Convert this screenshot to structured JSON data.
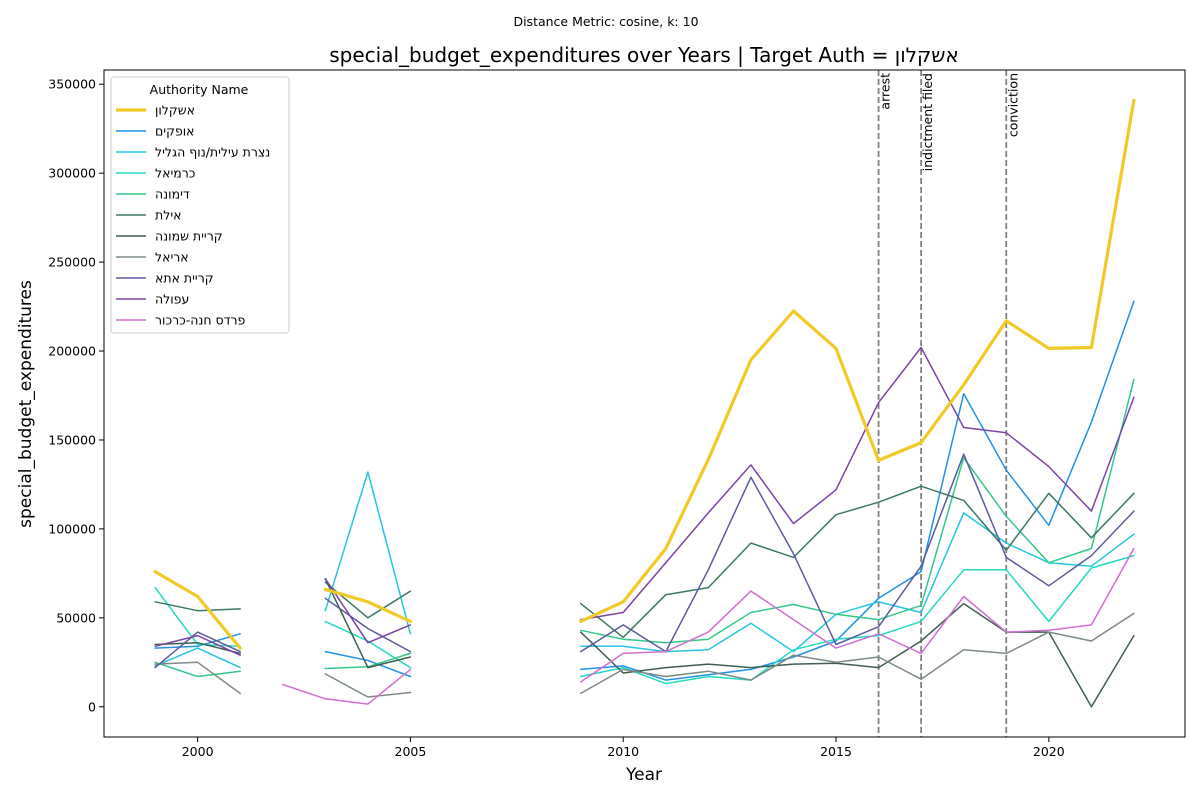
{
  "chart_data": {
    "type": "line",
    "suptitle": "Distance Metric: cosine, k: 10",
    "title": "special_budget_expenditures over Years | Target Auth = אשקלון",
    "xlabel": "Year",
    "ylabel": "special_budget_expenditures",
    "xlim": [
      1997.8,
      2023.2
    ],
    "ylim": [
      -17000,
      358000
    ],
    "xticks": [
      2000,
      2005,
      2010,
      2015,
      2020
    ],
    "yticks": [
      0,
      50000,
      100000,
      150000,
      200000,
      250000,
      300000,
      350000
    ],
    "grid": false,
    "legend": {
      "title": "Authority Name",
      "placement": "upper left"
    },
    "annotations": [
      {
        "x": 2016,
        "label": "arrest"
      },
      {
        "x": 2017,
        "label": "indictment filed"
      },
      {
        "x": 2019,
        "label": "conviction"
      }
    ],
    "annotation_color": "#808080",
    "series": [
      {
        "name": "אשקלון",
        "color": "#F2CA27",
        "width": 3.2,
        "values": [
          [
            1999,
            76000
          ],
          [
            2000,
            62000
          ],
          [
            2001,
            33000
          ],
          null,
          [
            2003,
            66000
          ],
          [
            2004,
            59000
          ],
          [
            2005,
            48000
          ],
          null,
          [
            2009,
            48000
          ],
          [
            2010,
            59000
          ],
          [
            2011,
            89000
          ],
          [
            2012,
            139000
          ],
          [
            2013,
            195000
          ],
          [
            2014,
            222500
          ],
          [
            2015,
            201500
          ],
          [
            2016,
            138500
          ],
          [
            2017,
            148500
          ],
          [
            2018,
            181000
          ],
          [
            2019,
            217000
          ],
          [
            2020,
            201500
          ],
          [
            2021,
            202000
          ],
          [
            2022,
            341000
          ]
        ]
      },
      {
        "name": "אופקים",
        "color": "#2192E6",
        "width": 1.5,
        "values": [
          [
            1999,
            33000
          ],
          [
            2000,
            34000
          ],
          [
            2001,
            41000
          ],
          null,
          [
            2003,
            31000
          ],
          [
            2004,
            26000
          ],
          [
            2005,
            17000
          ],
          null,
          [
            2009,
            21000
          ],
          [
            2010,
            23000
          ],
          [
            2011,
            15000
          ],
          [
            2012,
            18000
          ],
          [
            2013,
            21000
          ],
          [
            2014,
            28000
          ],
          [
            2015,
            37000
          ],
          [
            2016,
            61000
          ],
          [
            2017,
            76000
          ],
          [
            2018,
            176000
          ],
          [
            2019,
            133000
          ],
          [
            2020,
            102000
          ],
          [
            2021,
            160000
          ],
          [
            2022,
            228000
          ]
        ]
      },
      {
        "name": "נצרת עילית/נוף הגליל",
        "color": "#25C6E0",
        "width": 1.5,
        "values": [
          [
            1999,
            23000
          ],
          [
            2000,
            33000
          ],
          [
            2001,
            22000
          ],
          null,
          [
            2003,
            54000
          ],
          [
            2004,
            132000
          ],
          [
            2005,
            41000
          ],
          null,
          [
            2009,
            34000
          ],
          [
            2010,
            34000
          ],
          [
            2011,
            31000
          ],
          [
            2012,
            32000
          ],
          [
            2013,
            47000
          ],
          [
            2014,
            31000
          ],
          [
            2015,
            52000
          ],
          [
            2016,
            59000
          ],
          [
            2017,
            53000
          ],
          [
            2018,
            109000
          ],
          [
            2019,
            92000
          ],
          [
            2020,
            81000
          ],
          [
            2021,
            79000
          ],
          [
            2022,
            97000
          ]
        ]
      },
      {
        "name": "כרמיאל",
        "color": "#22DBC1",
        "width": 1.5,
        "values": [
          [
            1999,
            67000
          ],
          [
            2000,
            35000
          ],
          [
            2001,
            34000
          ],
          null,
          [
            2003,
            48000
          ],
          [
            2004,
            37000
          ],
          [
            2005,
            22000
          ],
          null,
          [
            2009,
            17000
          ],
          [
            2010,
            22000
          ],
          [
            2011,
            13000
          ],
          [
            2012,
            17000
          ],
          [
            2013,
            15000
          ],
          [
            2014,
            32000
          ],
          [
            2015,
            38000
          ],
          [
            2016,
            40000
          ],
          [
            2017,
            48000
          ],
          [
            2018,
            77000
          ],
          [
            2019,
            77000
          ],
          [
            2020,
            48000
          ],
          [
            2021,
            78000
          ],
          [
            2022,
            85000
          ]
        ]
      },
      {
        "name": "דימונה",
        "color": "#33C98A",
        "width": 1.5,
        "values": [
          [
            1999,
            25000
          ],
          [
            2000,
            17000
          ],
          [
            2001,
            20000
          ],
          null,
          [
            2003,
            21500
          ],
          [
            2004,
            22500
          ],
          [
            2005,
            30000
          ],
          null,
          [
            2009,
            43000
          ],
          [
            2010,
            38000
          ],
          [
            2011,
            36000
          ],
          [
            2012,
            38000
          ],
          [
            2013,
            53000
          ],
          [
            2014,
            57500
          ],
          [
            2015,
            52000
          ],
          [
            2016,
            49000
          ],
          [
            2017,
            57000
          ],
          [
            2018,
            140000
          ],
          [
            2019,
            107000
          ],
          [
            2020,
            81000
          ],
          [
            2021,
            89000
          ],
          [
            2022,
            184000
          ]
        ]
      },
      {
        "name": "אילת",
        "color": "#3A7A63",
        "width": 1.5,
        "values": [
          [
            1999,
            59000
          ],
          [
            2000,
            54000
          ],
          [
            2001,
            55000
          ],
          null,
          [
            2003,
            70000
          ],
          [
            2004,
            50000
          ],
          [
            2005,
            65000
          ],
          null,
          [
            2009,
            58000
          ],
          [
            2010,
            39000
          ],
          [
            2011,
            63000
          ],
          [
            2012,
            67000
          ],
          [
            2013,
            92000
          ],
          [
            2014,
            84000
          ],
          [
            2015,
            108000
          ],
          [
            2016,
            115000
          ],
          [
            2017,
            124000
          ],
          [
            2018,
            116000
          ],
          [
            2019,
            88000
          ],
          [
            2020,
            120000
          ],
          [
            2021,
            95000
          ],
          [
            2022,
            120000
          ]
        ]
      },
      {
        "name": "קריית שמונה",
        "color": "#3F5E52",
        "width": 1.5,
        "values": [
          [
            1999,
            35000
          ],
          [
            2000,
            36000
          ],
          [
            2001,
            30000
          ],
          null,
          [
            2003,
            72000
          ],
          [
            2004,
            22000
          ],
          [
            2005,
            28000
          ],
          null,
          [
            2009,
            42000
          ],
          [
            2010,
            19000
          ],
          [
            2011,
            22000
          ],
          [
            2012,
            24000
          ],
          [
            2013,
            22000
          ],
          [
            2014,
            24000
          ],
          [
            2015,
            24500
          ],
          [
            2016,
            22000
          ],
          [
            2017,
            37000
          ],
          [
            2018,
            58000
          ],
          [
            2019,
            42000
          ],
          [
            2020,
            42000
          ],
          [
            2021,
            0
          ],
          [
            2022,
            40000
          ]
        ]
      },
      {
        "name": "אריאל",
        "color": "#7D8A85",
        "width": 1.5,
        "values": [
          [
            1999,
            24000
          ],
          [
            2000,
            25000
          ],
          [
            2001,
            7500
          ],
          null,
          [
            2003,
            18500
          ],
          [
            2004,
            5500
          ],
          [
            2005,
            8000
          ],
          null,
          [
            2009,
            7500
          ],
          [
            2010,
            21000
          ],
          [
            2011,
            17000
          ],
          [
            2012,
            20000
          ],
          [
            2013,
            15000
          ],
          [
            2014,
            29000
          ],
          [
            2015,
            25000
          ],
          [
            2016,
            28000
          ],
          [
            2017,
            15500
          ],
          [
            2018,
            32000
          ],
          [
            2019,
            30000
          ],
          [
            2020,
            42000
          ],
          [
            2021,
            37000
          ],
          [
            2022,
            52500
          ]
        ]
      },
      {
        "name": "קריית אתא",
        "color": "#5B5B9E",
        "width": 1.5,
        "values": [
          [
            1999,
            22000
          ],
          [
            2000,
            42000
          ],
          [
            2001,
            31000
          ],
          null,
          [
            2003,
            61000
          ],
          [
            2004,
            44000
          ],
          [
            2005,
            31000
          ],
          null,
          [
            2009,
            31000
          ],
          [
            2010,
            46000
          ],
          [
            2011,
            31000
          ],
          [
            2012,
            77000
          ],
          [
            2013,
            129000
          ],
          [
            2014,
            86000
          ],
          [
            2015,
            35000
          ],
          [
            2016,
            45000
          ],
          [
            2017,
            79000
          ],
          [
            2018,
            142000
          ],
          [
            2019,
            84000
          ],
          [
            2020,
            68000
          ],
          [
            2021,
            85000
          ],
          [
            2022,
            110000
          ]
        ]
      },
      {
        "name": "עפולה",
        "color": "#7D43A8",
        "width": 1.5,
        "values": [
          [
            1999,
            34000
          ],
          [
            2000,
            40000
          ],
          [
            2001,
            29000
          ],
          null,
          [
            2003,
            72000
          ],
          [
            2004,
            36000
          ],
          [
            2005,
            46000
          ],
          null,
          [
            2009,
            49000
          ],
          [
            2010,
            53000
          ],
          [
            2011,
            81000
          ],
          [
            2012,
            109000
          ],
          [
            2013,
            136000
          ],
          [
            2014,
            103000
          ],
          [
            2015,
            122000
          ],
          [
            2016,
            171000
          ],
          [
            2017,
            202000
          ],
          [
            2018,
            157000
          ],
          [
            2019,
            154000
          ],
          [
            2020,
            135000
          ],
          [
            2021,
            110000
          ],
          [
            2022,
            174000
          ]
        ]
      },
      {
        "name": "פרדס חנה-כרכור",
        "color": "#CF6FCF",
        "width": 1.5,
        "values": [
          [
            2002,
            12500
          ],
          [
            2003,
            4500
          ],
          [
            2004,
            1500
          ],
          [
            2005,
            21000
          ],
          null,
          [
            2009,
            14000
          ],
          [
            2010,
            30000
          ],
          [
            2011,
            31000
          ],
          [
            2012,
            42000
          ],
          [
            2013,
            65000
          ],
          [
            2014,
            49000
          ],
          [
            2015,
            33000
          ],
          [
            2016,
            41000
          ],
          [
            2017,
            30000
          ],
          [
            2018,
            62000
          ],
          [
            2019,
            42000
          ],
          [
            2020,
            43000
          ],
          [
            2021,
            46000
          ],
          [
            2022,
            89000
          ]
        ]
      }
    ]
  }
}
